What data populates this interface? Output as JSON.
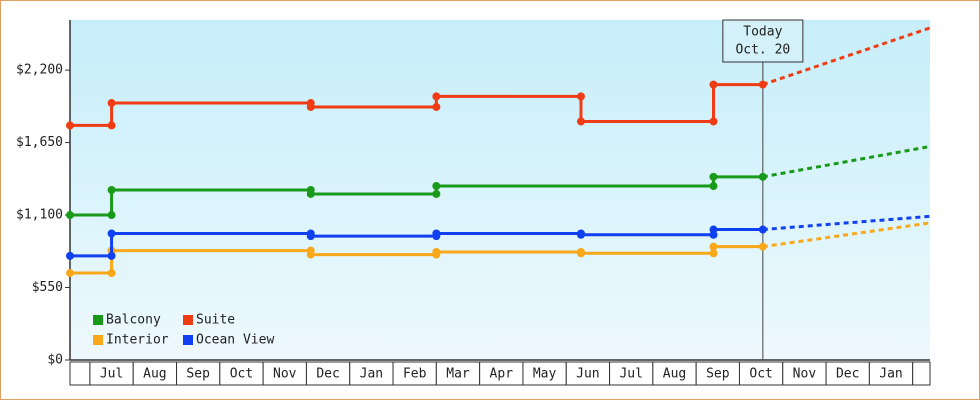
{
  "chart_data": {
    "type": "step-line",
    "xlim": [
      0.54,
      20.4
    ],
    "categories": [
      null,
      "Jul",
      "Aug",
      "Sep",
      "Oct",
      "Nov",
      "Dec",
      "Jan",
      "Feb",
      "Mar",
      "Apr",
      "May",
      "Jun",
      "Jul",
      "Aug",
      "Sep",
      "Oct",
      "Nov",
      "Dec",
      "Jan",
      null
    ],
    "ylim": [
      0,
      2580
    ],
    "yticks": [
      {
        "value": 0,
        "label": "$0"
      },
      {
        "value": 550,
        "label": "$550"
      },
      {
        "value": 1100,
        "label": "$1,100"
      },
      {
        "value": 1650,
        "label": "$1,650"
      },
      {
        "value": 2200,
        "label": "$2,200"
      }
    ],
    "grid": false,
    "legend": "lower left",
    "annotation": {
      "text": [
        "Today",
        "Oct. 20"
      ],
      "x": 16.54
    },
    "series": [
      {
        "name": "Balcony",
        "color": "#1a9a1a",
        "x": [
          0.54,
          1.5,
          1.5,
          6.1,
          6.1,
          9.0,
          9.0,
          15.4,
          15.4,
          16.54
        ],
        "values": [
          1100,
          1100,
          1290,
          1290,
          1260,
          1260,
          1320,
          1320,
          1390,
          1390
        ],
        "projection_x": [
          16.54,
          20.4
        ],
        "projection_values": [
          1390,
          1620
        ]
      },
      {
        "name": "Suite",
        "color": "#f03c14",
        "x": [
          0.54,
          1.5,
          1.5,
          6.1,
          6.1,
          9.0,
          9.0,
          12.34,
          12.34,
          15.4,
          15.4,
          16.54
        ],
        "values": [
          1780,
          1780,
          1950,
          1950,
          1920,
          1920,
          2000,
          2000,
          1810,
          1810,
          2090,
          2090
        ],
        "projection_x": [
          16.54,
          20.4
        ],
        "projection_values": [
          2090,
          2520
        ]
      },
      {
        "name": "Interior",
        "color": "#f8a818",
        "x": [
          0.54,
          1.5,
          1.5,
          6.1,
          6.1,
          9.0,
          9.0,
          12.34,
          12.34,
          15.4,
          15.4,
          16.54
        ],
        "values": [
          660,
          660,
          830,
          830,
          800,
          800,
          820,
          820,
          810,
          810,
          860,
          860
        ],
        "projection_x": [
          16.54,
          20.4
        ],
        "projection_values": [
          860,
          1040
        ]
      },
      {
        "name": "Ocean View",
        "color": "#1040f0",
        "x": [
          0.54,
          1.5,
          1.5,
          6.1,
          6.1,
          9.0,
          9.0,
          12.34,
          12.34,
          15.4,
          15.4,
          16.54
        ],
        "values": [
          790,
          790,
          960,
          960,
          940,
          940,
          960,
          960,
          950,
          950,
          990,
          990
        ],
        "projection_x": [
          16.54,
          20.4
        ],
        "projection_values": [
          990,
          1090
        ]
      }
    ]
  }
}
